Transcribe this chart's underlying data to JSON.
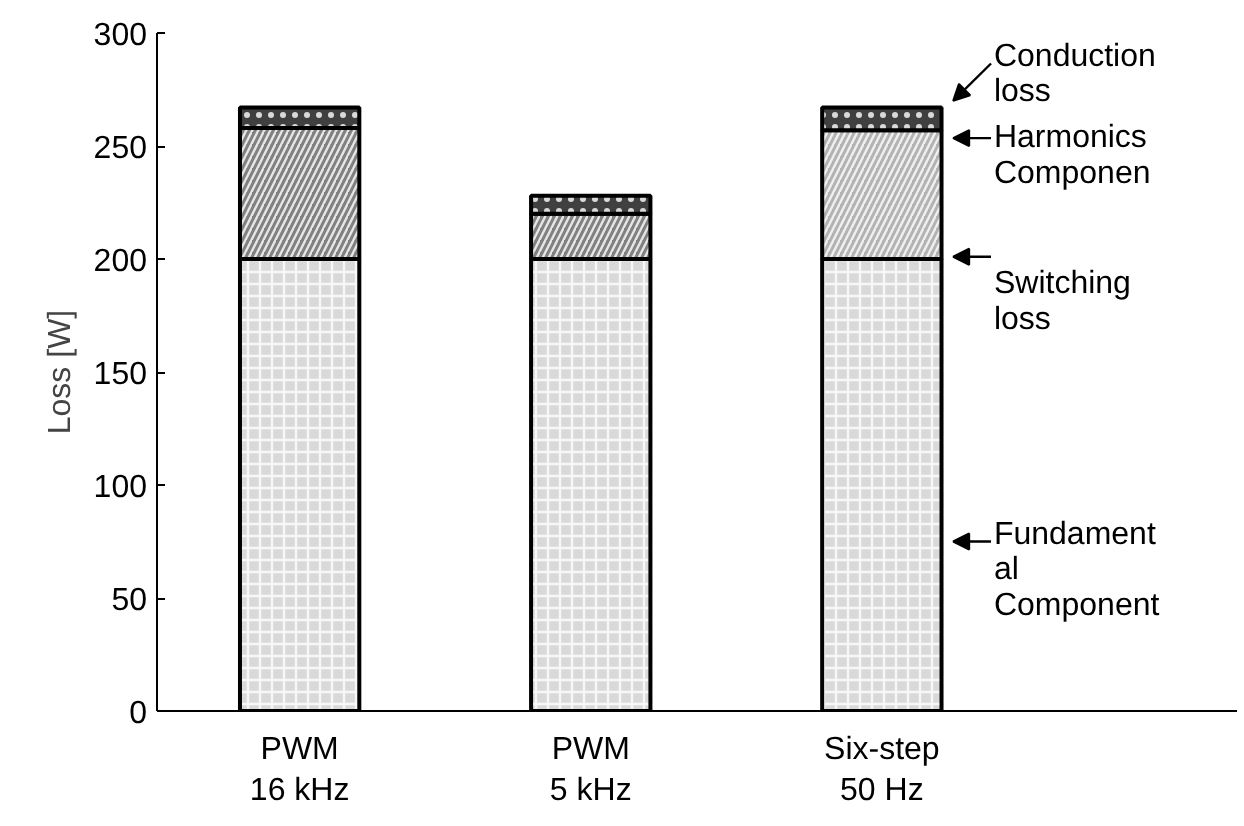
{
  "chart_data": {
    "type": "bar",
    "stacked": true,
    "ylabel": "Loss [W]",
    "categories": [
      "PWM\n16 kHz",
      "PWM\n5 kHz",
      "Six-step\n50 Hz"
    ],
    "series": [
      {
        "color": "#d9d9d9",
        "values": [
          200,
          200,
          200
        ]
      },
      {
        "colors": [
          "#808080",
          "#808080",
          "#b3b3b3"
        ],
        "values": [
          58,
          20,
          57
        ]
      },
      {
        "color": "#404040",
        "values": [
          9,
          8,
          10
        ]
      }
    ],
    "ylim": [
      0,
      300
    ],
    "yticks": [
      0,
      50,
      100,
      150,
      200,
      250,
      300
    ],
    "grid": false,
    "annotations": [
      "Conduction\nloss",
      "Harmonics\nComponen",
      "Switching\nloss",
      "Fundament\nal\nComponent"
    ]
  }
}
